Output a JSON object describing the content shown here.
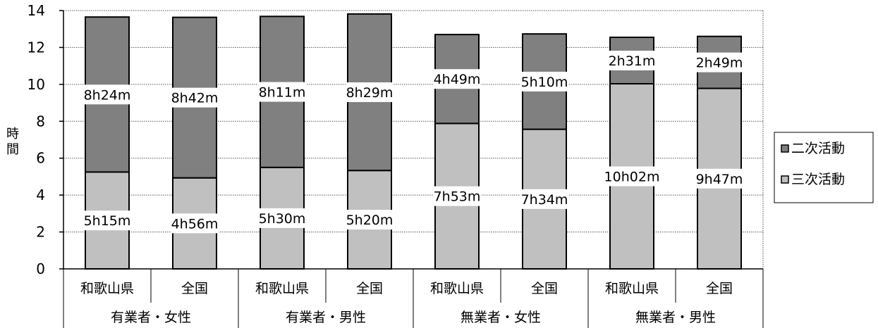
{
  "chart_data": {
    "type": "bar",
    "stacked": true,
    "ylabel": "時間",
    "ylim": [
      0,
      14
    ],
    "yticks": [
      "0",
      "2",
      "4",
      "6",
      "8",
      "10",
      "12",
      "14"
    ],
    "grid": true,
    "legend_position": "right",
    "categories": [
      "和歌山県",
      "全国",
      "和歌山県",
      "全国",
      "和歌山県",
      "全国",
      "和歌山県",
      "全国"
    ],
    "groups": [
      "有業者・女性",
      "有業者・男性",
      "無業者・女性",
      "無業者・男性"
    ],
    "series": [
      {
        "name": "三次活動",
        "color": "#c0c0c0",
        "values": [
          5.25,
          4.933,
          5.5,
          5.333,
          7.883,
          7.567,
          10.033,
          9.783
        ],
        "labels": [
          "5h15m",
          "4h56m",
          "5h30m",
          "5h20m",
          "7h53m",
          "7h34m",
          "10h02m",
          "9h47m"
        ]
      },
      {
        "name": "二次活動",
        "color": "#808080",
        "values": [
          8.4,
          8.7,
          8.183,
          8.483,
          4.817,
          5.167,
          2.517,
          2.817
        ],
        "labels": [
          "8h24m",
          "8h42m",
          "8h11m",
          "8h29m",
          "4h49m",
          "5h10m",
          "2h31m",
          "2h49m"
        ]
      }
    ],
    "legend_order": [
      "二次活動",
      "三次活動"
    ]
  }
}
